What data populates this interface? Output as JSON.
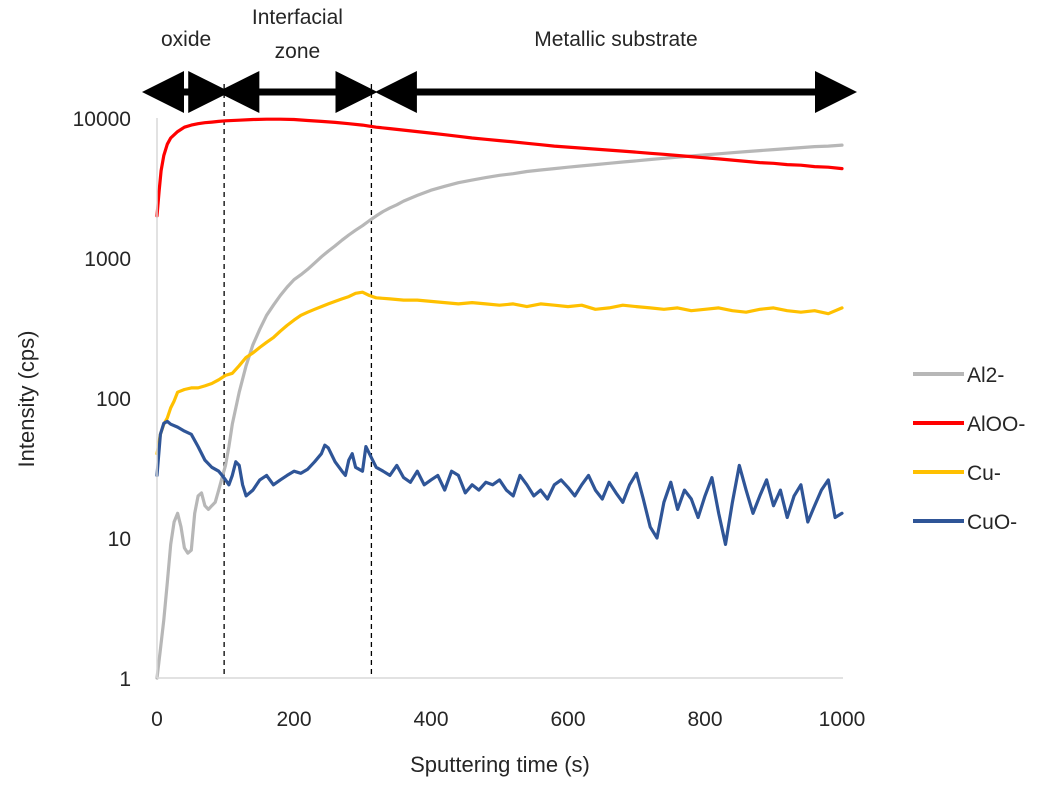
{
  "chart_data": {
    "type": "line",
    "xlabel": "Sputtering time (s)",
    "ylabel": "Intensity (cps)",
    "xlim": [
      0,
      1000
    ],
    "ylim": [
      1,
      10000
    ],
    "yscale": "log",
    "grid": false,
    "legend_position": "right",
    "x_ticks": [
      0,
      200,
      400,
      600,
      800,
      1000
    ],
    "x_tick_labels": [
      "0",
      "200",
      "400",
      "600",
      "800",
      "1000"
    ],
    "y_ticks": [
      1,
      10,
      100,
      1000,
      10000
    ],
    "y_tick_labels": [
      "1",
      "10",
      "100",
      "1000",
      "10000"
    ],
    "regions": [
      {
        "label": "oxide",
        "x_start": 0,
        "x_end": 85
      },
      {
        "label": "Interfacial zone",
        "x_start": 110,
        "x_end": 300
      },
      {
        "label": "Metallic substrate",
        "x_start": 340,
        "x_end": 1000
      }
    ],
    "dividers": [
      98,
      313
    ],
    "series": [
      {
        "name": "Al2-",
        "color": "#b7b7b7",
        "points": [
          [
            0,
            1
          ],
          [
            5,
            1.6
          ],
          [
            10,
            2.6
          ],
          [
            15,
            4.8
          ],
          [
            20,
            9
          ],
          [
            25,
            13
          ],
          [
            30,
            15
          ],
          [
            35,
            12
          ],
          [
            40,
            8.5
          ],
          [
            45,
            7.8
          ],
          [
            50,
            8.2
          ],
          [
            55,
            15
          ],
          [
            60,
            20
          ],
          [
            65,
            21
          ],
          [
            70,
            17
          ],
          [
            75,
            16
          ],
          [
            80,
            17
          ],
          [
            85,
            18
          ],
          [
            90,
            22
          ],
          [
            95,
            27
          ],
          [
            100,
            33
          ],
          [
            105,
            45
          ],
          [
            110,
            65
          ],
          [
            120,
            110
          ],
          [
            130,
            170
          ],
          [
            140,
            240
          ],
          [
            150,
            310
          ],
          [
            160,
            390
          ],
          [
            170,
            460
          ],
          [
            180,
            540
          ],
          [
            190,
            620
          ],
          [
            200,
            700
          ],
          [
            210,
            760
          ],
          [
            220,
            830
          ],
          [
            230,
            920
          ],
          [
            240,
            1020
          ],
          [
            250,
            1120
          ],
          [
            260,
            1220
          ],
          [
            270,
            1340
          ],
          [
            280,
            1460
          ],
          [
            290,
            1580
          ],
          [
            300,
            1700
          ],
          [
            310,
            1850
          ],
          [
            320,
            2000
          ],
          [
            330,
            2150
          ],
          [
            340,
            2280
          ],
          [
            350,
            2400
          ],
          [
            360,
            2550
          ],
          [
            380,
            2800
          ],
          [
            400,
            3050
          ],
          [
            420,
            3250
          ],
          [
            440,
            3450
          ],
          [
            460,
            3600
          ],
          [
            480,
            3750
          ],
          [
            500,
            3900
          ],
          [
            520,
            4000
          ],
          [
            540,
            4150
          ],
          [
            560,
            4250
          ],
          [
            580,
            4350
          ],
          [
            600,
            4450
          ],
          [
            620,
            4550
          ],
          [
            640,
            4650
          ],
          [
            660,
            4750
          ],
          [
            680,
            4850
          ],
          [
            700,
            4950
          ],
          [
            720,
            5050
          ],
          [
            740,
            5150
          ],
          [
            760,
            5250
          ],
          [
            780,
            5350
          ],
          [
            800,
            5450
          ],
          [
            820,
            5550
          ],
          [
            840,
            5650
          ],
          [
            860,
            5750
          ],
          [
            880,
            5850
          ],
          [
            900,
            5950
          ],
          [
            920,
            6050
          ],
          [
            940,
            6150
          ],
          [
            960,
            6250
          ],
          [
            980,
            6300
          ],
          [
            1000,
            6400
          ]
        ]
      },
      {
        "name": "AlOO-",
        "color": "#ff0000",
        "points": [
          [
            0,
            2000
          ],
          [
            3,
            3000
          ],
          [
            6,
            4200
          ],
          [
            10,
            5400
          ],
          [
            15,
            6500
          ],
          [
            20,
            7200
          ],
          [
            30,
            8000
          ],
          [
            40,
            8600
          ],
          [
            50,
            8900
          ],
          [
            60,
            9100
          ],
          [
            70,
            9250
          ],
          [
            80,
            9350
          ],
          [
            90,
            9450
          ],
          [
            100,
            9550
          ],
          [
            120,
            9650
          ],
          [
            140,
            9750
          ],
          [
            160,
            9800
          ],
          [
            180,
            9800
          ],
          [
            200,
            9750
          ],
          [
            220,
            9600
          ],
          [
            240,
            9450
          ],
          [
            260,
            9300
          ],
          [
            280,
            9100
          ],
          [
            300,
            8900
          ],
          [
            320,
            8600
          ],
          [
            340,
            8400
          ],
          [
            360,
            8200
          ],
          [
            380,
            8000
          ],
          [
            400,
            7800
          ],
          [
            420,
            7600
          ],
          [
            440,
            7400
          ],
          [
            460,
            7200
          ],
          [
            480,
            7050
          ],
          [
            500,
            6900
          ],
          [
            520,
            6750
          ],
          [
            540,
            6600
          ],
          [
            560,
            6450
          ],
          [
            580,
            6300
          ],
          [
            600,
            6200
          ],
          [
            620,
            6100
          ],
          [
            640,
            6000
          ],
          [
            660,
            5900
          ],
          [
            680,
            5800
          ],
          [
            700,
            5700
          ],
          [
            720,
            5600
          ],
          [
            740,
            5500
          ],
          [
            760,
            5400
          ],
          [
            780,
            5300
          ],
          [
            800,
            5200
          ],
          [
            820,
            5100
          ],
          [
            840,
            5000
          ],
          [
            860,
            4900
          ],
          [
            880,
            4800
          ],
          [
            900,
            4750
          ],
          [
            920,
            4650
          ],
          [
            940,
            4600
          ],
          [
            960,
            4500
          ],
          [
            980,
            4450
          ],
          [
            1000,
            4350
          ]
        ]
      },
      {
        "name": "Cu-",
        "color": "#ffc000",
        "points": [
          [
            0,
            40
          ],
          [
            5,
            55
          ],
          [
            10,
            65
          ],
          [
            15,
            72
          ],
          [
            20,
            85
          ],
          [
            25,
            95
          ],
          [
            30,
            110
          ],
          [
            40,
            115
          ],
          [
            50,
            118
          ],
          [
            60,
            118
          ],
          [
            70,
            122
          ],
          [
            80,
            127
          ],
          [
            90,
            135
          ],
          [
            100,
            145
          ],
          [
            110,
            150
          ],
          [
            120,
            170
          ],
          [
            130,
            195
          ],
          [
            140,
            210
          ],
          [
            150,
            230
          ],
          [
            160,
            250
          ],
          [
            170,
            270
          ],
          [
            180,
            300
          ],
          [
            190,
            330
          ],
          [
            200,
            360
          ],
          [
            210,
            390
          ],
          [
            220,
            410
          ],
          [
            230,
            430
          ],
          [
            240,
            450
          ],
          [
            250,
            470
          ],
          [
            260,
            490
          ],
          [
            270,
            510
          ],
          [
            280,
            530
          ],
          [
            290,
            560
          ],
          [
            300,
            570
          ],
          [
            310,
            540
          ],
          [
            320,
            520
          ],
          [
            340,
            510
          ],
          [
            360,
            500
          ],
          [
            380,
            500
          ],
          [
            400,
            490
          ],
          [
            420,
            480
          ],
          [
            440,
            470
          ],
          [
            460,
            480
          ],
          [
            480,
            470
          ],
          [
            500,
            460
          ],
          [
            520,
            470
          ],
          [
            540,
            450
          ],
          [
            560,
            470
          ],
          [
            580,
            460
          ],
          [
            600,
            450
          ],
          [
            620,
            460
          ],
          [
            640,
            430
          ],
          [
            660,
            440
          ],
          [
            680,
            460
          ],
          [
            700,
            450
          ],
          [
            720,
            440
          ],
          [
            740,
            430
          ],
          [
            760,
            440
          ],
          [
            780,
            420
          ],
          [
            800,
            430
          ],
          [
            820,
            440
          ],
          [
            840,
            420
          ],
          [
            860,
            410
          ],
          [
            880,
            430
          ],
          [
            900,
            440
          ],
          [
            920,
            420
          ],
          [
            940,
            410
          ],
          [
            960,
            420
          ],
          [
            980,
            400
          ],
          [
            1000,
            440
          ]
        ]
      },
      {
        "name": "CuO-",
        "color": "#2f5597",
        "points": [
          [
            0,
            28
          ],
          [
            5,
            55
          ],
          [
            10,
            66
          ],
          [
            15,
            68
          ],
          [
            20,
            65
          ],
          [
            30,
            62
          ],
          [
            40,
            58
          ],
          [
            50,
            55
          ],
          [
            60,
            45
          ],
          [
            70,
            36
          ],
          [
            80,
            32
          ],
          [
            90,
            30
          ],
          [
            95,
            28
          ],
          [
            100,
            26
          ],
          [
            105,
            24
          ],
          [
            110,
            28
          ],
          [
            115,
            35
          ],
          [
            120,
            33
          ],
          [
            125,
            24
          ],
          [
            130,
            20
          ],
          [
            140,
            22
          ],
          [
            150,
            26
          ],
          [
            160,
            28
          ],
          [
            170,
            24
          ],
          [
            180,
            26
          ],
          [
            190,
            28
          ],
          [
            200,
            30
          ],
          [
            210,
            29
          ],
          [
            220,
            31
          ],
          [
            230,
            35
          ],
          [
            240,
            40
          ],
          [
            245,
            46
          ],
          [
            250,
            44
          ],
          [
            260,
            35
          ],
          [
            270,
            30
          ],
          [
            275,
            28
          ],
          [
            280,
            36
          ],
          [
            285,
            40
          ],
          [
            290,
            32
          ],
          [
            300,
            30
          ],
          [
            305,
            45
          ],
          [
            310,
            40
          ],
          [
            320,
            32
          ],
          [
            330,
            30
          ],
          [
            340,
            28
          ],
          [
            350,
            33
          ],
          [
            360,
            27
          ],
          [
            370,
            25
          ],
          [
            380,
            30
          ],
          [
            390,
            24
          ],
          [
            400,
            26
          ],
          [
            410,
            28
          ],
          [
            420,
            22
          ],
          [
            430,
            30
          ],
          [
            440,
            28
          ],
          [
            450,
            21
          ],
          [
            460,
            24
          ],
          [
            470,
            22
          ],
          [
            480,
            25
          ],
          [
            490,
            24
          ],
          [
            500,
            26
          ],
          [
            510,
            22
          ],
          [
            520,
            20
          ],
          [
            530,
            28
          ],
          [
            540,
            24
          ],
          [
            550,
            20
          ],
          [
            560,
            22
          ],
          [
            570,
            19
          ],
          [
            580,
            24
          ],
          [
            590,
            26
          ],
          [
            600,
            23
          ],
          [
            610,
            20
          ],
          [
            620,
            24
          ],
          [
            630,
            28
          ],
          [
            640,
            22
          ],
          [
            650,
            19
          ],
          [
            660,
            25
          ],
          [
            670,
            21
          ],
          [
            680,
            18
          ],
          [
            690,
            24
          ],
          [
            700,
            29
          ],
          [
            710,
            19
          ],
          [
            720,
            12
          ],
          [
            730,
            10
          ],
          [
            740,
            18
          ],
          [
            750,
            25
          ],
          [
            760,
            16
          ],
          [
            770,
            22
          ],
          [
            780,
            19
          ],
          [
            790,
            14
          ],
          [
            800,
            20
          ],
          [
            810,
            27
          ],
          [
            820,
            15
          ],
          [
            830,
            9
          ],
          [
            840,
            18
          ],
          [
            850,
            33
          ],
          [
            860,
            22
          ],
          [
            870,
            15
          ],
          [
            880,
            20
          ],
          [
            890,
            26
          ],
          [
            900,
            17
          ],
          [
            910,
            22
          ],
          [
            920,
            14
          ],
          [
            930,
            20
          ],
          [
            940,
            24
          ],
          [
            950,
            13
          ],
          [
            960,
            17
          ],
          [
            970,
            22
          ],
          [
            980,
            26
          ],
          [
            990,
            14
          ],
          [
            1000,
            15
          ]
        ]
      }
    ]
  }
}
